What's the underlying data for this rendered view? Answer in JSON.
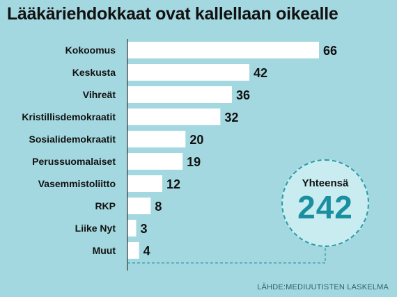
{
  "title": "Lääkäriehdokkaat ovat kallellaan oikealle",
  "source": "LÄHDE:MEDIUUTISTEN LASKELMA",
  "total": {
    "label": "Yhteensä",
    "value": "242"
  },
  "colors": {
    "background": "#a4d8e0",
    "bar": "#ffffff",
    "accent": "#1a8fa0",
    "circle": "#c9ecf0"
  },
  "chart_data": {
    "type": "bar",
    "orientation": "horizontal",
    "title": "Lääkäriehdokkaat ovat kallellaan oikealle",
    "categories": [
      "Kokoomus",
      "Keskusta",
      "Vihreät",
      "Kristillisdemokraatit",
      "Sosialidemokraatit",
      "Perussuomalaiset",
      "Vasemmistoliitto",
      "RKP",
      "Liike Nyt",
      "Muut"
    ],
    "values": [
      66,
      42,
      36,
      32,
      20,
      19,
      12,
      8,
      3,
      4
    ],
    "data_labels": [
      "66",
      "42",
      "36",
      "32",
      "20",
      "19",
      "12",
      "8",
      "3",
      "4"
    ],
    "xlim": [
      0,
      66
    ],
    "grid": false,
    "legend": "none"
  }
}
